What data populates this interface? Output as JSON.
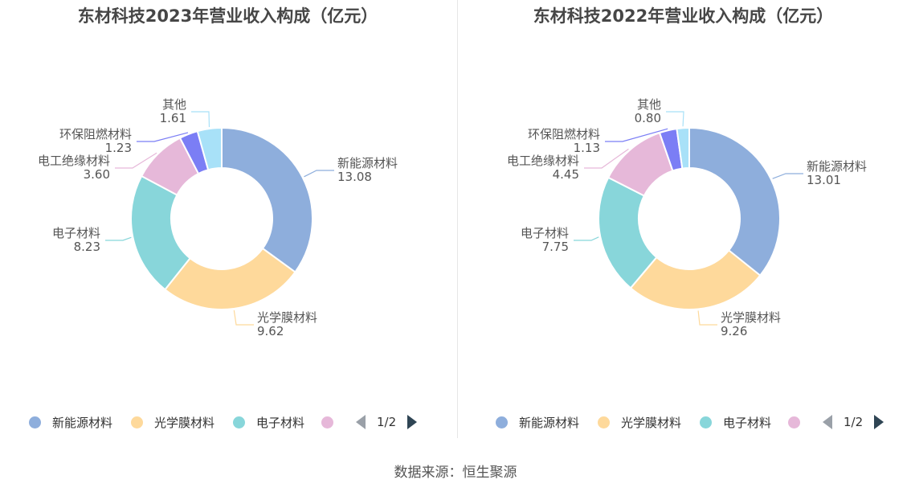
{
  "source": "数据来源：恒生聚源",
  "pager": {
    "text": "1/2"
  },
  "legend_labels": [
    "新能源材料",
    "光学膜材料",
    "电子材料"
  ],
  "colors": [
    "#8eaedc",
    "#fed99b",
    "#88d6da",
    "#e6b8d9",
    "#7b7ef5",
    "#a8e1f8"
  ],
  "chart_data": [
    {
      "type": "pie",
      "title": "东材科技2023年营业收入构成（亿元）",
      "categories": [
        "新能源材料",
        "光学膜材料",
        "电子材料",
        "电工绝缘材料",
        "环保阻燃材料",
        "其他"
      ],
      "values": [
        13.08,
        9.62,
        8.23,
        3.6,
        1.23,
        1.61
      ],
      "value_labels": [
        "13.08",
        "9.62",
        "8.23",
        "3.60",
        "1.23",
        "1.61"
      ]
    },
    {
      "type": "pie",
      "title": "东材科技2022年营业收入构成（亿元）",
      "categories": [
        "新能源材料",
        "光学膜材料",
        "电子材料",
        "电工绝缘材料",
        "环保阻燃材料",
        "其他"
      ],
      "values": [
        13.01,
        9.26,
        7.75,
        4.45,
        1.13,
        0.8
      ],
      "value_labels": [
        "13.01",
        "9.26",
        "7.75",
        "4.45",
        "1.13",
        "0.80"
      ]
    }
  ]
}
